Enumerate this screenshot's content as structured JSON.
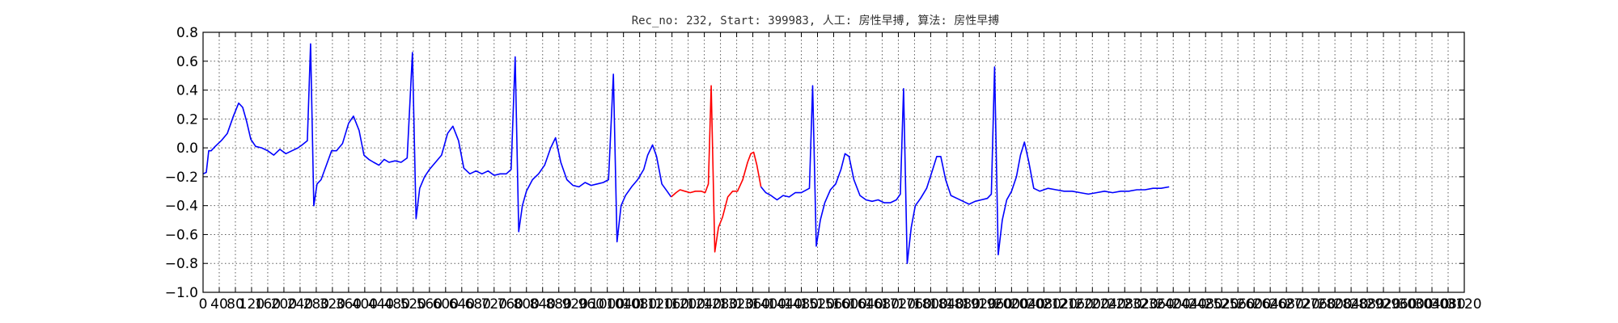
{
  "chart_data": {
    "type": "line",
    "title": "Rec_no: 232, Start: 399983, 人工: 房性早搏, 算法: 房性早搏",
    "xlabel": "",
    "ylabel": "",
    "xlim": [
      0,
      3120
    ],
    "ylim": [
      -1.0,
      0.8
    ],
    "grid": true,
    "legend": "none",
    "y_ticks": [
      -1.0,
      -0.8,
      -0.6,
      -0.4,
      -0.2,
      0.0,
      0.2,
      0.4,
      0.6,
      0.8
    ],
    "y_tick_labels": [
      "−1.0",
      "−0.8",
      "−0.6",
      "−0.4",
      "−0.2",
      "0.0",
      "0.2",
      "0.4",
      "0.6",
      "0.8"
    ],
    "x_ticks": [
      0,
      40,
      80,
      120,
      160,
      200,
      240,
      280,
      320,
      360,
      400,
      440,
      480,
      520,
      560,
      600,
      640,
      680,
      720,
      760,
      800,
      840,
      880,
      920,
      960,
      1000,
      1040,
      1080,
      1120,
      1160,
      1200,
      1240,
      1280,
      1320,
      1360,
      1400,
      1440,
      1480,
      1520,
      1560,
      1600,
      1640,
      1680,
      1720,
      1760,
      1800,
      1840,
      1880,
      1920,
      1960,
      2000,
      2040,
      2080,
      2120,
      2160,
      2200,
      2240,
      2280,
      2320,
      2360,
      2400,
      2440,
      2480,
      2520,
      2560,
      2600,
      2640,
      2680,
      2720,
      2760,
      2800,
      2840,
      2880,
      2920,
      2960,
      3000,
      3040,
      3080,
      3120
    ],
    "x_tick_labels": [
      "0",
      "40",
      "80",
      "120",
      "160",
      "200",
      "240",
      "280",
      "320",
      "360",
      "400",
      "440",
      "480",
      "520",
      "560",
      "600",
      "640",
      "680",
      "720",
      "760",
      "800",
      "840",
      "880",
      "920",
      "960",
      "1000",
      "1040",
      "1080",
      "1120",
      "1160",
      "1200",
      "1240",
      "1280",
      "1320",
      "1360",
      "1400",
      "1440",
      "1480",
      "1520",
      "1560",
      "1600",
      "1640",
      "1680",
      "1720",
      "1760",
      "1800",
      "1840",
      "1880",
      "1920",
      "1960",
      "2000",
      "2040",
      "2080",
      "2120",
      "2160",
      "2200",
      "2240",
      "2280",
      "2320",
      "2360",
      "2400",
      "2440",
      "2480",
      "2520",
      "2560",
      "2600",
      "2640",
      "2680",
      "2720",
      "2760",
      "2800",
      "2840",
      "2880",
      "2920",
      "2960",
      "3000",
      "3040",
      "3080",
      "3120"
    ],
    "series": [
      {
        "color": "#0000ff",
        "points": [
          [
            0,
            -0.18
          ],
          [
            8,
            -0.17
          ],
          [
            14,
            -0.02
          ],
          [
            20,
            -0.02
          ],
          [
            30,
            0.01
          ],
          [
            45,
            0.05
          ],
          [
            60,
            0.1
          ],
          [
            75,
            0.22
          ],
          [
            88,
            0.31
          ],
          [
            98,
            0.28
          ],
          [
            108,
            0.18
          ],
          [
            118,
            0.06
          ],
          [
            130,
            0.01
          ],
          [
            145,
            0.0
          ],
          [
            160,
            -0.02
          ],
          [
            175,
            -0.05
          ],
          [
            190,
            -0.01
          ],
          [
            205,
            -0.04
          ],
          [
            220,
            -0.02
          ],
          [
            235,
            0.0
          ],
          [
            245,
            0.02
          ],
          [
            258,
            0.05
          ],
          [
            266,
            0.72
          ],
          [
            274,
            -0.4
          ],
          [
            282,
            -0.25
          ],
          [
            292,
            -0.22
          ],
          [
            305,
            -0.12
          ],
          [
            318,
            -0.02
          ],
          [
            330,
            -0.02
          ],
          [
            345,
            0.03
          ],
          [
            360,
            0.17
          ],
          [
            372,
            0.22
          ],
          [
            386,
            0.12
          ],
          [
            398,
            -0.05
          ],
          [
            410,
            -0.08
          ],
          [
            422,
            -0.1
          ],
          [
            435,
            -0.12
          ],
          [
            448,
            -0.08
          ],
          [
            460,
            -0.1
          ],
          [
            475,
            -0.09
          ],
          [
            490,
            -0.1
          ],
          [
            505,
            -0.07
          ],
          [
            518,
            0.66
          ],
          [
            527,
            -0.49
          ],
          [
            536,
            -0.28
          ],
          [
            548,
            -0.2
          ],
          [
            560,
            -0.15
          ],
          [
            575,
            -0.1
          ],
          [
            590,
            -0.05
          ],
          [
            605,
            0.1
          ],
          [
            618,
            0.15
          ],
          [
            632,
            0.05
          ],
          [
            645,
            -0.14
          ],
          [
            660,
            -0.18
          ],
          [
            675,
            -0.16
          ],
          [
            690,
            -0.18
          ],
          [
            705,
            -0.16
          ],
          [
            720,
            -0.19
          ],
          [
            735,
            -0.18
          ],
          [
            750,
            -0.18
          ],
          [
            762,
            -0.15
          ],
          [
            772,
            0.63
          ],
          [
            781,
            -0.58
          ],
          [
            790,
            -0.4
          ],
          [
            800,
            -0.3
          ],
          [
            815,
            -0.22
          ],
          [
            830,
            -0.18
          ],
          [
            845,
            -0.12
          ],
          [
            860,
            0.0
          ],
          [
            872,
            0.07
          ],
          [
            885,
            -0.1
          ],
          [
            900,
            -0.22
          ],
          [
            915,
            -0.26
          ],
          [
            930,
            -0.27
          ],
          [
            945,
            -0.24
          ],
          [
            960,
            -0.26
          ],
          [
            975,
            -0.25
          ],
          [
            990,
            -0.24
          ],
          [
            1003,
            -0.22
          ],
          [
            1015,
            0.51
          ],
          [
            1024,
            -0.65
          ],
          [
            1034,
            -0.4
          ],
          [
            1045,
            -0.33
          ],
          [
            1060,
            -0.27
          ],
          [
            1075,
            -0.22
          ],
          [
            1090,
            -0.15
          ],
          [
            1100,
            -0.05
          ],
          [
            1112,
            0.02
          ],
          [
            1122,
            -0.06
          ],
          [
            1135,
            -0.25
          ],
          [
            1148,
            -0.3
          ],
          [
            1158,
            -0.34
          ]
        ],
        "highlight": false
      },
      {
        "color": "#ff0000",
        "points": [
          [
            1158,
            -0.34
          ],
          [
            1170,
            -0.31
          ],
          [
            1180,
            -0.29
          ],
          [
            1192,
            -0.3
          ],
          [
            1205,
            -0.31
          ],
          [
            1218,
            -0.3
          ],
          [
            1232,
            -0.3
          ],
          [
            1242,
            -0.31
          ],
          [
            1250,
            -0.25
          ],
          [
            1257,
            0.43
          ],
          [
            1266,
            -0.72
          ],
          [
            1275,
            -0.55
          ],
          [
            1285,
            -0.48
          ],
          [
            1298,
            -0.34
          ],
          [
            1310,
            -0.3
          ],
          [
            1322,
            -0.3
          ],
          [
            1335,
            -0.22
          ],
          [
            1347,
            -0.1
          ],
          [
            1355,
            -0.04
          ],
          [
            1362,
            -0.03
          ],
          [
            1370,
            -0.12
          ],
          [
            1380,
            -0.27
          ]
        ],
        "highlight": true
      },
      {
        "color": "#0000ff",
        "points": [
          [
            1380,
            -0.27
          ],
          [
            1392,
            -0.31
          ],
          [
            1405,
            -0.33
          ],
          [
            1420,
            -0.36
          ],
          [
            1435,
            -0.33
          ],
          [
            1450,
            -0.34
          ],
          [
            1465,
            -0.31
          ],
          [
            1480,
            -0.31
          ],
          [
            1500,
            -0.28
          ],
          [
            1508,
            0.43
          ],
          [
            1517,
            -0.68
          ],
          [
            1527,
            -0.5
          ],
          [
            1538,
            -0.38
          ],
          [
            1552,
            -0.29
          ],
          [
            1565,
            -0.25
          ],
          [
            1578,
            -0.15
          ],
          [
            1588,
            -0.04
          ],
          [
            1598,
            -0.06
          ],
          [
            1610,
            -0.22
          ],
          [
            1625,
            -0.33
          ],
          [
            1640,
            -0.36
          ],
          [
            1655,
            -0.37
          ],
          [
            1670,
            -0.36
          ],
          [
            1685,
            -0.38
          ],
          [
            1700,
            -0.38
          ],
          [
            1715,
            -0.36
          ],
          [
            1725,
            -0.32
          ],
          [
            1733,
            0.41
          ],
          [
            1742,
            -0.8
          ],
          [
            1752,
            -0.55
          ],
          [
            1762,
            -0.4
          ],
          [
            1775,
            -0.35
          ],
          [
            1790,
            -0.28
          ],
          [
            1805,
            -0.15
          ],
          [
            1815,
            -0.06
          ],
          [
            1825,
            -0.06
          ],
          [
            1837,
            -0.22
          ],
          [
            1850,
            -0.33
          ],
          [
            1865,
            -0.35
          ],
          [
            1880,
            -0.37
          ],
          [
            1895,
            -0.39
          ],
          [
            1910,
            -0.37
          ],
          [
            1925,
            -0.36
          ],
          [
            1940,
            -0.35
          ],
          [
            1950,
            -0.32
          ],
          [
            1958,
            0.56
          ],
          [
            1967,
            -0.74
          ],
          [
            1977,
            -0.5
          ],
          [
            1988,
            -0.36
          ],
          [
            2000,
            -0.3
          ],
          [
            2012,
            -0.2
          ],
          [
            2022,
            -0.05
          ],
          [
            2032,
            0.04
          ],
          [
            2043,
            -0.1
          ],
          [
            2055,
            -0.28
          ],
          [
            2070,
            -0.3
          ],
          [
            2090,
            -0.28
          ],
          [
            2110,
            -0.29
          ],
          [
            2130,
            -0.3
          ],
          [
            2150,
            -0.3
          ],
          [
            2170,
            -0.31
          ],
          [
            2190,
            -0.32
          ],
          [
            2210,
            -0.31
          ],
          [
            2230,
            -0.3
          ],
          [
            2250,
            -0.31
          ],
          [
            2270,
            -0.3
          ],
          [
            2290,
            -0.3
          ],
          [
            2310,
            -0.29
          ],
          [
            2330,
            -0.29
          ],
          [
            2350,
            -0.28
          ],
          [
            2370,
            -0.28
          ],
          [
            2390,
            -0.27
          ]
        ],
        "highlight": false
      }
    ]
  }
}
